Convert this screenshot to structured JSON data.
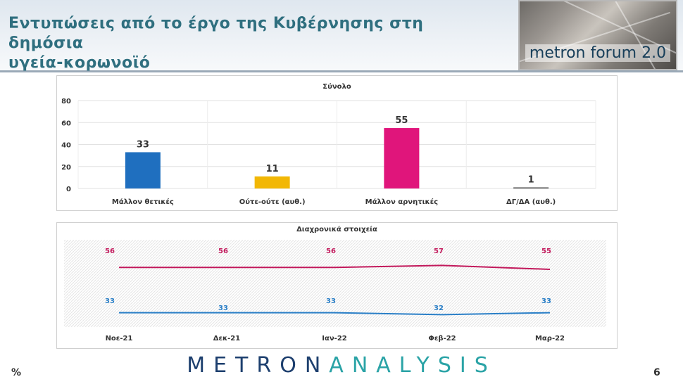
{
  "slide": {
    "title_line1": "Εντυπώσεις από το έργο της Κυβέρνησης στη δημόσια",
    "title_line2": "υγεία-κορωνοϊό",
    "logo_text": "metron forum 2.0",
    "footer_brand_part1": "METRON",
    "footer_brand_part2": "ANALYSIS",
    "percent_sign": "%",
    "page_number": "6"
  },
  "chart_data": [
    {
      "type": "bar",
      "title": "Σύνολο",
      "categories": [
        "Μάλλον θετικές",
        "Ούτε-ούτε (αυθ.)",
        "Μάλλον αρνητικές",
        "ΔΓ/ΔΑ (αυθ.)"
      ],
      "values": [
        33,
        11,
        55,
        1
      ],
      "value_labels": [
        "33",
        "11",
        "55",
        "1"
      ],
      "colors": [
        "#1f6fbf",
        "#f2b705",
        "#e0157b",
        "#555555"
      ],
      "ylim": [
        0,
        80
      ],
      "yticks": [
        0,
        20,
        40,
        60,
        80
      ],
      "ytick_labels": [
        "0",
        "20",
        "40",
        "60",
        "80"
      ],
      "grid": true
    },
    {
      "type": "line",
      "title": "Διαχρονικά στοιχεία",
      "categories": [
        "Νοε-21",
        "Δεκ-21",
        "Ιαν-22",
        "Φεβ-22",
        "Μαρ-22"
      ],
      "series": [
        {
          "values": [
            56,
            56,
            56,
            57,
            55
          ],
          "labels": [
            "56",
            "56",
            "56",
            "57",
            "55"
          ],
          "color": "#c2185b"
        },
        {
          "values": [
            33,
            33,
            33,
            32,
            33
          ],
          "labels": [
            "33",
            "33",
            "33",
            "32",
            "33"
          ],
          "color": "#2a7fc7"
        }
      ],
      "grid": true
    }
  ]
}
